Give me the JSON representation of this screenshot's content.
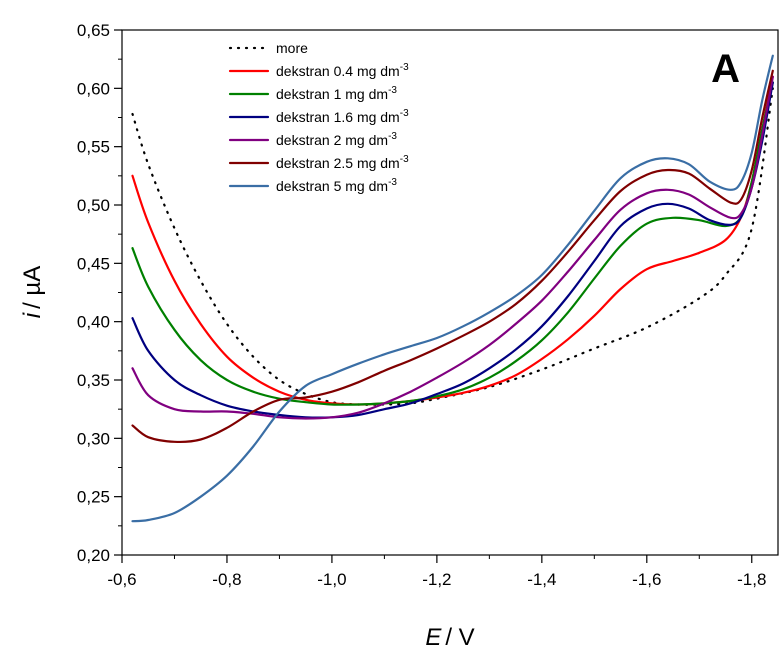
{
  "chart_data": {
    "type": "line",
    "panel_label": "A",
    "xlabel": {
      "var": "E",
      "unit": "/ V"
    },
    "ylabel": {
      "var": "i",
      "unit": "/ µA"
    },
    "xlim": [
      -0.6,
      -1.85
    ],
    "ylim": [
      0.2,
      0.65
    ],
    "x_ticks": [
      "-0,6",
      "-0,8",
      "-1,0",
      "-1,2",
      "-1,4",
      "-1,6",
      "-1,8"
    ],
    "x_tick_values": [
      -0.6,
      -0.8,
      -1.0,
      -1.2,
      -1.4,
      -1.6,
      -1.8
    ],
    "y_ticks": [
      "0,20",
      "0,25",
      "0,30",
      "0,35",
      "0,40",
      "0,45",
      "0,50",
      "0,55",
      "0,60",
      "0,65"
    ],
    "y_tick_values": [
      0.2,
      0.25,
      0.3,
      0.35,
      0.4,
      0.45,
      0.5,
      0.55,
      0.6,
      0.65
    ],
    "legend_position": "top-left",
    "series": [
      {
        "name": "more",
        "name_sup": "",
        "color": "#000000",
        "dash": "dotted",
        "x": [
          -0.62,
          -0.65,
          -0.7,
          -0.75,
          -0.8,
          -0.85,
          -0.9,
          -0.95,
          -1.0,
          -1.05,
          -1.1,
          -1.15,
          -1.2,
          -1.3,
          -1.4,
          -1.5,
          -1.6,
          -1.7,
          -1.75,
          -1.8,
          -1.84
        ],
        "y": [
          0.578,
          0.535,
          0.48,
          0.435,
          0.398,
          0.37,
          0.35,
          0.338,
          0.331,
          0.329,
          0.329,
          0.33,
          0.334,
          0.344,
          0.359,
          0.377,
          0.395,
          0.42,
          0.44,
          0.48,
          0.6
        ]
      },
      {
        "name": "dekstran 0.4 mg dm",
        "name_sup": "-3",
        "color": "#ff0000",
        "dash": "solid",
        "x": [
          -0.62,
          -0.65,
          -0.7,
          -0.75,
          -0.8,
          -0.85,
          -0.9,
          -0.95,
          -1.0,
          -1.05,
          -1.1,
          -1.15,
          -1.2,
          -1.25,
          -1.3,
          -1.35,
          -1.4,
          -1.45,
          -1.5,
          -1.55,
          -1.6,
          -1.65,
          -1.7,
          -1.75,
          -1.78,
          -1.8,
          -1.82,
          -1.84
        ],
        "y": [
          0.525,
          0.485,
          0.435,
          0.398,
          0.37,
          0.352,
          0.34,
          0.333,
          0.33,
          0.329,
          0.33,
          0.332,
          0.335,
          0.339,
          0.345,
          0.354,
          0.368,
          0.385,
          0.405,
          0.428,
          0.445,
          0.452,
          0.459,
          0.47,
          0.49,
          0.52,
          0.565,
          0.61
        ]
      },
      {
        "name": "dekstran 1 mg dm",
        "name_sup": "-3",
        "color": "#008000",
        "dash": "solid",
        "x": [
          -0.62,
          -0.65,
          -0.7,
          -0.75,
          -0.8,
          -0.85,
          -0.9,
          -0.95,
          -1.0,
          -1.05,
          -1.1,
          -1.15,
          -1.2,
          -1.25,
          -1.3,
          -1.35,
          -1.4,
          -1.45,
          -1.5,
          -1.55,
          -1.6,
          -1.65,
          -1.7,
          -1.75,
          -1.78,
          -1.8,
          -1.82,
          -1.84
        ],
        "y": [
          0.463,
          0.43,
          0.393,
          0.367,
          0.35,
          0.34,
          0.334,
          0.331,
          0.329,
          0.329,
          0.33,
          0.332,
          0.336,
          0.342,
          0.352,
          0.366,
          0.384,
          0.408,
          0.437,
          0.465,
          0.484,
          0.489,
          0.487,
          0.482,
          0.49,
          0.52,
          0.565,
          0.605
        ]
      },
      {
        "name": "dekstran 1.6 mg dm",
        "name_sup": "-3",
        "color": "#000080",
        "dash": "solid",
        "x": [
          -0.62,
          -0.65,
          -0.7,
          -0.75,
          -0.8,
          -0.85,
          -0.9,
          -0.95,
          -1.0,
          -1.05,
          -1.1,
          -1.15,
          -1.2,
          -1.25,
          -1.3,
          -1.35,
          -1.4,
          -1.45,
          -1.5,
          -1.55,
          -1.6,
          -1.64,
          -1.68,
          -1.72,
          -1.76,
          -1.78,
          -1.8,
          -1.82,
          -1.84
        ],
        "y": [
          0.403,
          0.375,
          0.35,
          0.337,
          0.328,
          0.323,
          0.32,
          0.318,
          0.318,
          0.32,
          0.325,
          0.33,
          0.338,
          0.347,
          0.36,
          0.376,
          0.396,
          0.422,
          0.452,
          0.482,
          0.497,
          0.501,
          0.497,
          0.487,
          0.483,
          0.49,
          0.515,
          0.555,
          0.605
        ]
      },
      {
        "name": "dekstran 2 mg dm",
        "name_sup": "-3",
        "color": "#800080",
        "dash": "solid",
        "x": [
          -0.62,
          -0.65,
          -0.7,
          -0.75,
          -0.8,
          -0.85,
          -0.9,
          -0.95,
          -1.0,
          -1.05,
          -1.1,
          -1.15,
          -1.2,
          -1.25,
          -1.3,
          -1.35,
          -1.4,
          -1.45,
          -1.5,
          -1.55,
          -1.6,
          -1.64,
          -1.68,
          -1.72,
          -1.76,
          -1.78,
          -1.8,
          -1.82,
          -1.84
        ],
        "y": [
          0.36,
          0.337,
          0.325,
          0.323,
          0.323,
          0.321,
          0.318,
          0.317,
          0.318,
          0.322,
          0.33,
          0.34,
          0.352,
          0.365,
          0.38,
          0.398,
          0.418,
          0.443,
          0.47,
          0.496,
          0.51,
          0.513,
          0.509,
          0.498,
          0.489,
          0.493,
          0.515,
          0.56,
          0.61
        ]
      },
      {
        "name": "dekstran 2.5 mg dm",
        "name_sup": "-3",
        "color": "#800000",
        "dash": "solid",
        "x": [
          -0.62,
          -0.65,
          -0.7,
          -0.75,
          -0.8,
          -0.85,
          -0.9,
          -0.95,
          -1.0,
          -1.05,
          -1.1,
          -1.15,
          -1.2,
          -1.25,
          -1.3,
          -1.35,
          -1.4,
          -1.45,
          -1.5,
          -1.55,
          -1.6,
          -1.64,
          -1.68,
          -1.72,
          -1.76,
          -1.78,
          -1.8,
          -1.82,
          -1.84
        ],
        "y": [
          0.311,
          0.301,
          0.297,
          0.299,
          0.309,
          0.323,
          0.333,
          0.335,
          0.34,
          0.348,
          0.358,
          0.367,
          0.377,
          0.388,
          0.4,
          0.415,
          0.435,
          0.46,
          0.487,
          0.512,
          0.526,
          0.53,
          0.527,
          0.514,
          0.502,
          0.505,
          0.53,
          0.575,
          0.615
        ]
      },
      {
        "name": "dekstran 5 mg dm",
        "name_sup": "-3",
        "color": "#3a6ea5",
        "dash": "solid",
        "x": [
          -0.62,
          -0.65,
          -0.7,
          -0.75,
          -0.8,
          -0.85,
          -0.9,
          -0.95,
          -1.0,
          -1.05,
          -1.1,
          -1.15,
          -1.2,
          -1.25,
          -1.3,
          -1.35,
          -1.4,
          -1.45,
          -1.5,
          -1.55,
          -1.6,
          -1.64,
          -1.68,
          -1.72,
          -1.76,
          -1.78,
          -1.8,
          -1.82,
          -1.84
        ],
        "y": [
          0.229,
          0.23,
          0.236,
          0.25,
          0.268,
          0.293,
          0.323,
          0.345,
          0.355,
          0.364,
          0.372,
          0.379,
          0.386,
          0.396,
          0.408,
          0.422,
          0.44,
          0.466,
          0.495,
          0.523,
          0.537,
          0.54,
          0.535,
          0.52,
          0.513,
          0.52,
          0.545,
          0.59,
          0.628
        ]
      }
    ]
  }
}
